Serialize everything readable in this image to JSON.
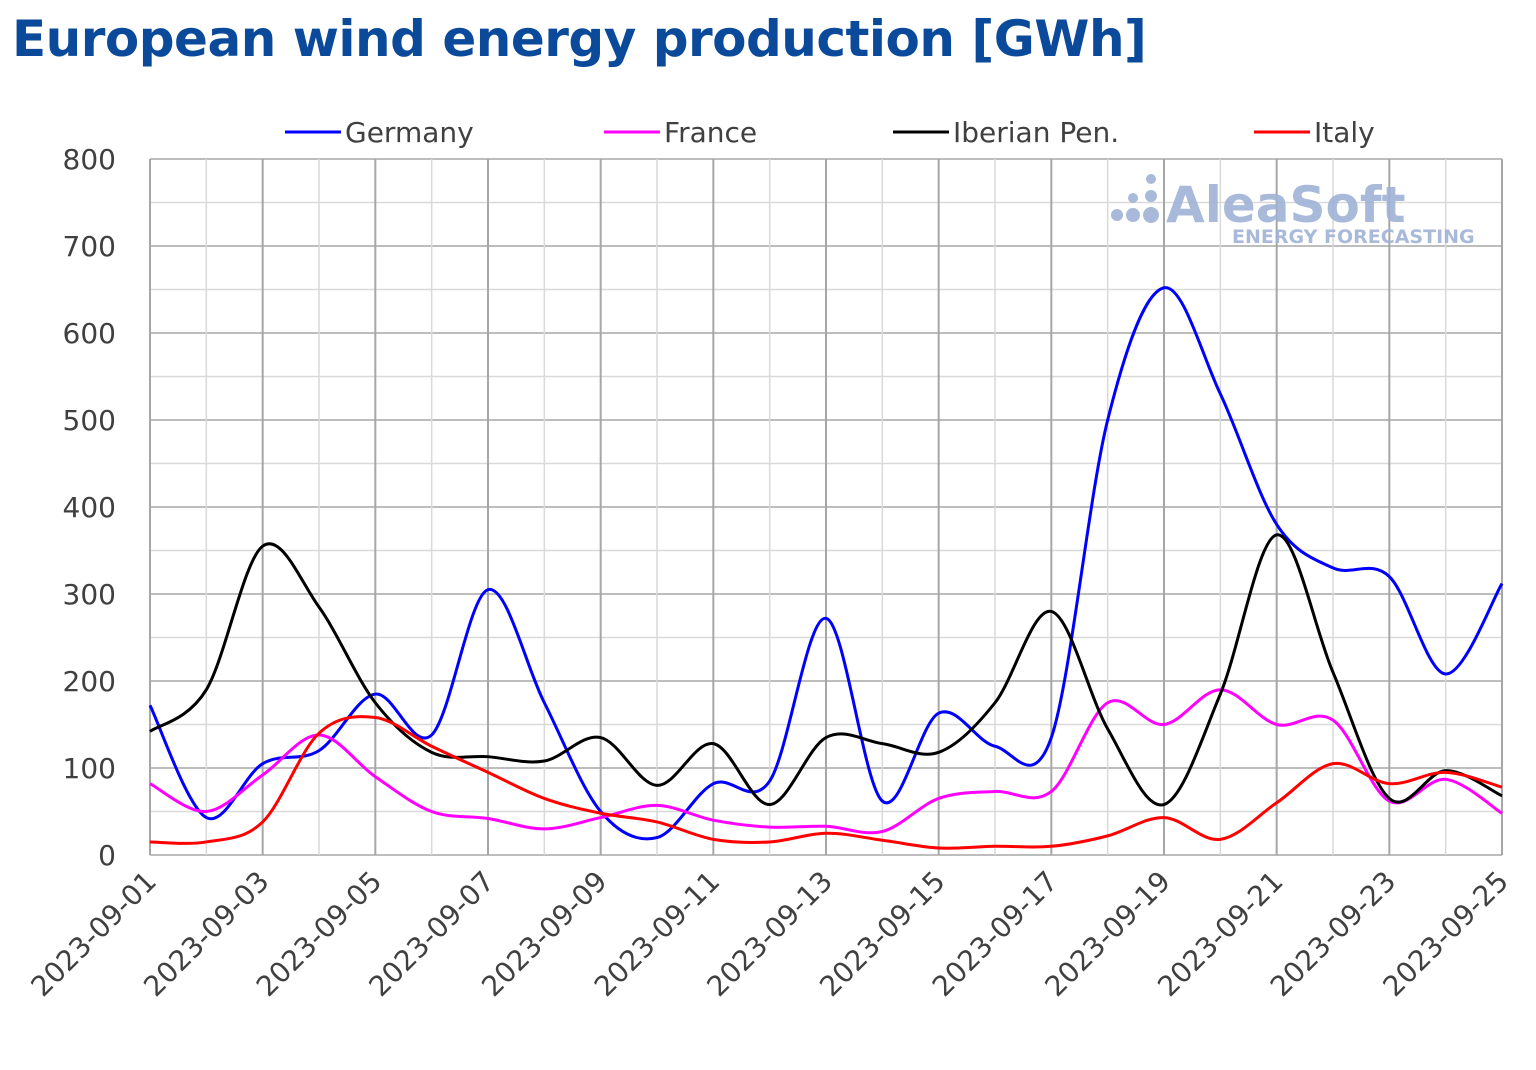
{
  "chart_data": {
    "type": "line",
    "title": "European wind energy production [GWh]",
    "xlabel": "",
    "ylabel": "",
    "ylim": [
      0,
      800
    ],
    "yticks": [
      0,
      100,
      200,
      300,
      400,
      500,
      600,
      700,
      800
    ],
    "grid": true,
    "legend": "top",
    "x": [
      "2023-09-01",
      "2023-09-02",
      "2023-09-03",
      "2023-09-04",
      "2023-09-05",
      "2023-09-06",
      "2023-09-07",
      "2023-09-08",
      "2023-09-09",
      "2023-09-10",
      "2023-09-11",
      "2023-09-12",
      "2023-09-13",
      "2023-09-14",
      "2023-09-15",
      "2023-09-16",
      "2023-09-17",
      "2023-09-18",
      "2023-09-19",
      "2023-09-20",
      "2023-09-21",
      "2023-09-22",
      "2023-09-23",
      "2023-09-24",
      "2023-09-25"
    ],
    "xtick_labels": [
      "2023-09-01",
      "2023-09-03",
      "2023-09-05",
      "2023-09-07",
      "2023-09-09",
      "2023-09-11",
      "2023-09-13",
      "2023-09-15",
      "2023-09-17",
      "2023-09-19",
      "2023-09-21",
      "2023-09-23",
      "2023-09-25"
    ],
    "series": [
      {
        "name": "Germany",
        "color": "#0000ff",
        "values": [
          172,
          43,
          105,
          120,
          185,
          138,
          305,
          175,
          50,
          20,
          82,
          85,
          272,
          62,
          163,
          125,
          135,
          500,
          652,
          530,
          380,
          330,
          320,
          208,
          312
        ]
      },
      {
        "name": "France",
        "color": "#ff00ff",
        "values": [
          82,
          50,
          92,
          138,
          90,
          50,
          42,
          30,
          43,
          57,
          40,
          32,
          33,
          27,
          65,
          73,
          73,
          175,
          150,
          190,
          150,
          155,
          62,
          87,
          48
        ]
      },
      {
        "name": "Iberian Pen.",
        "color": "#000000",
        "values": [
          142,
          190,
          355,
          285,
          175,
          118,
          113,
          108,
          135,
          80,
          128,
          58,
          135,
          128,
          118,
          175,
          280,
          145,
          58,
          185,
          368,
          210,
          65,
          97,
          68
        ]
      },
      {
        "name": "Italy",
        "color": "#ff0000",
        "values": [
          15,
          15,
          38,
          140,
          158,
          125,
          95,
          65,
          48,
          38,
          18,
          15,
          25,
          17,
          8,
          10,
          10,
          22,
          43,
          18,
          60,
          105,
          82,
          95,
          78
        ]
      }
    ]
  },
  "watermark": {
    "brand": "AleaSoft",
    "tagline": "ENERGY FORECASTING",
    "color": "#9fb2d6"
  }
}
